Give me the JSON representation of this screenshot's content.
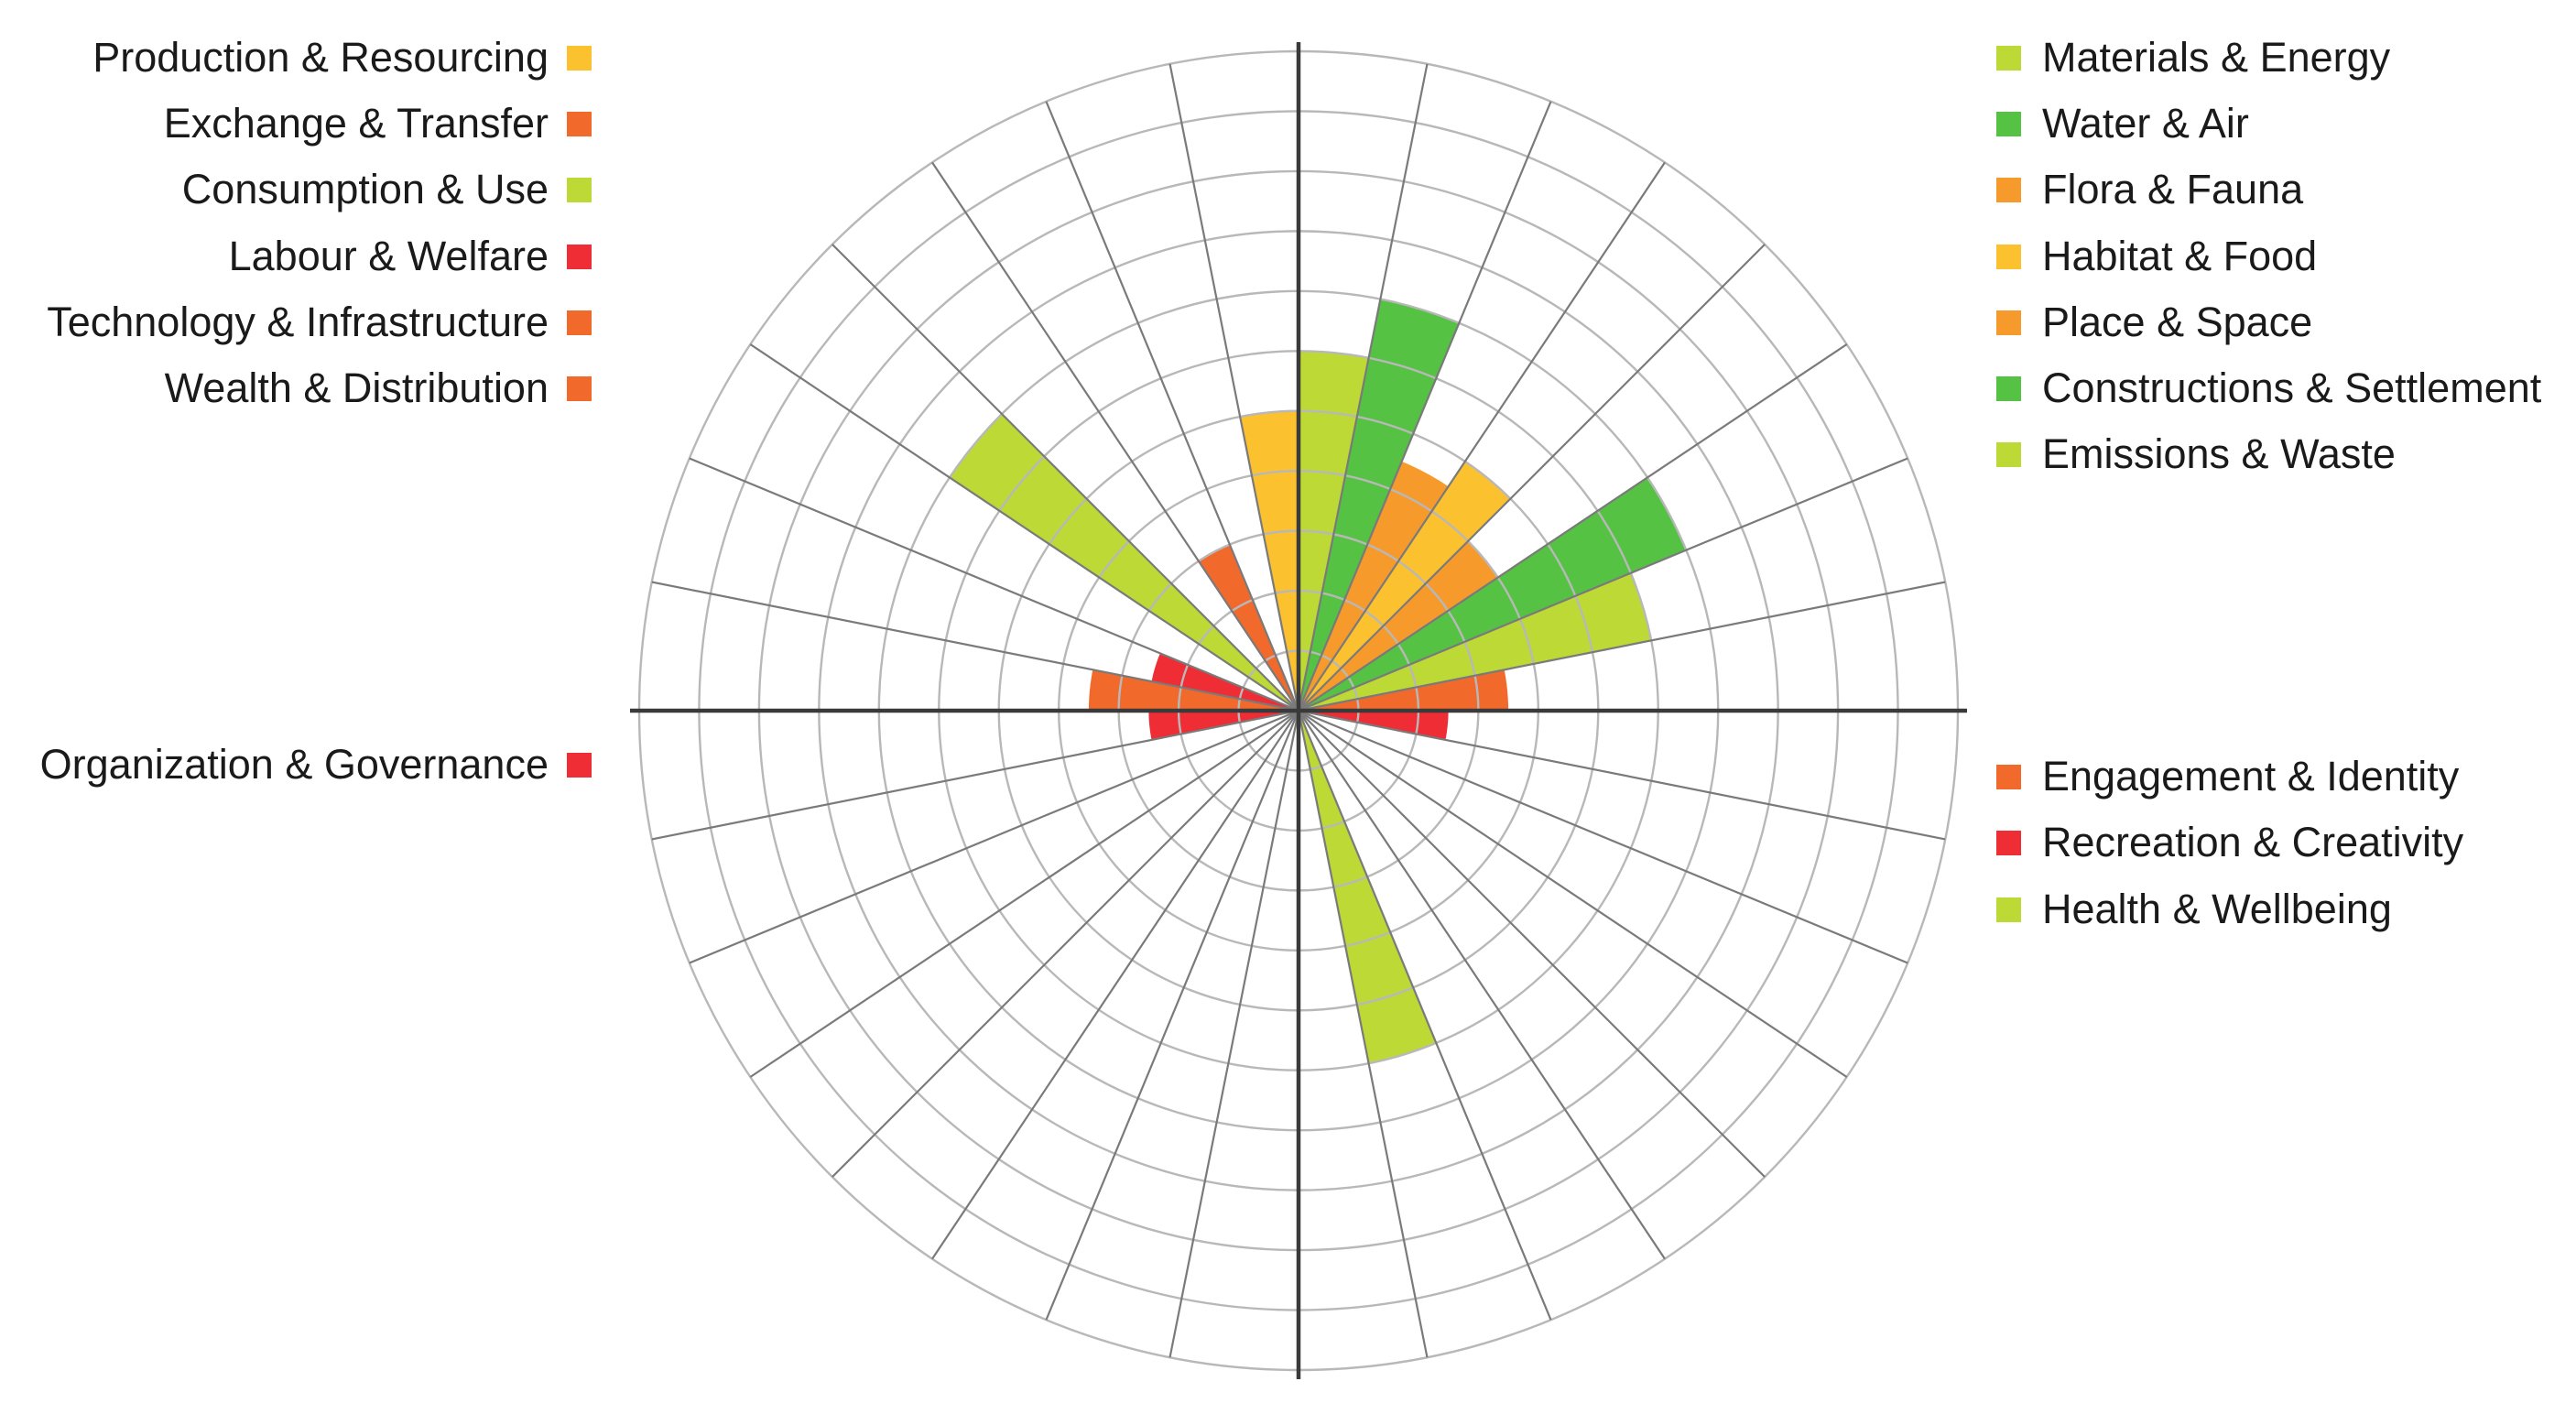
{
  "chart_data": {
    "type": "polar-bar",
    "rings": 11,
    "value_range": [
      0,
      11
    ],
    "grid": true,
    "quadrant_legend_placement": {
      "top-left": "Social",
      "top-right": "Ecological",
      "bottom-left": "Governance",
      "bottom-right": "Cultural"
    },
    "sectors": [
      {
        "label": "Materials & Energy",
        "value": 6,
        "color": "#bcd935",
        "side": "right"
      },
      {
        "label": "Water & Air",
        "value": 7,
        "color": "#55c244",
        "side": "right"
      },
      {
        "label": "Flora & Fauna",
        "value": 4.5,
        "color": "#f79a2c",
        "side": "right"
      },
      {
        "label": "Habitat & Food",
        "value": 5,
        "color": "#fbc12f",
        "side": "right"
      },
      {
        "label": "Place & Space",
        "value": 4,
        "color": "#f79a2c",
        "side": "right"
      },
      {
        "label": "Constructions & Settlement",
        "value": 7,
        "color": "#55c244",
        "side": "right"
      },
      {
        "label": "Emissions & Waste",
        "value": 6,
        "color": "#bcd935",
        "side": "right"
      },
      {
        "label": "Engagement & Identity",
        "value": 3.5,
        "color": "#f2692c",
        "side": "right"
      },
      {
        "label": "Recreation & Creativity",
        "value": 2.5,
        "color": "#ef2d35",
        "side": "right"
      },
      {
        "label": "",
        "value": 0,
        "color": "#ffffff",
        "side": "right"
      },
      {
        "label": "",
        "value": 0,
        "color": "#ffffff",
        "side": "right"
      },
      {
        "label": "",
        "value": 0,
        "color": "#ffffff",
        "side": "right"
      },
      {
        "label": "",
        "value": 0,
        "color": "#ffffff",
        "side": "right"
      },
      {
        "label": "",
        "value": 0,
        "color": "#ffffff",
        "side": "right"
      },
      {
        "label": "Health & Wellbeing",
        "value": 6,
        "color": "#bcd935",
        "side": "right"
      },
      {
        "label": "",
        "value": 0,
        "color": "#ffffff",
        "side": "left"
      },
      {
        "label": "",
        "value": 0,
        "color": "#ffffff",
        "side": "left"
      },
      {
        "label": "",
        "value": 0,
        "color": "#ffffff",
        "side": "left"
      },
      {
        "label": "",
        "value": 0,
        "color": "#ffffff",
        "side": "left"
      },
      {
        "label": "",
        "value": 0,
        "color": "#ffffff",
        "side": "left"
      },
      {
        "label": "",
        "value": 0,
        "color": "#ffffff",
        "side": "left"
      },
      {
        "label": "",
        "value": 0,
        "color": "#ffffff",
        "side": "left"
      },
      {
        "label": "",
        "value": 0,
        "color": "#ffffff",
        "side": "left"
      },
      {
        "label": "Organization & Governance",
        "value": 2.5,
        "color": "#ef2d35",
        "side": "left"
      },
      {
        "label": "Wealth & Distribution",
        "value": 3.5,
        "color": "#f2692c",
        "side": "left"
      },
      {
        "label": "Technology & Infrastructure",
        "value": 2.5,
        "color": "#ef2d35",
        "side": "left"
      },
      {
        "label": "Labour & Welfare",
        "value": 0,
        "color": "#ffffff",
        "side": "left"
      },
      {
        "label": "Consumption & Use",
        "value": 7,
        "color": "#bcd935",
        "side": "left"
      },
      {
        "label": "Exchange & Transfer",
        "value": 0,
        "color": "#ffffff",
        "side": "left"
      },
      {
        "label": "Production & Resourcing",
        "value": 3,
        "color": "#f2692c",
        "side": "left"
      },
      {
        "label": "",
        "value": 0,
        "color": "#ffffff",
        "side": "left"
      },
      {
        "label": "",
        "value": 5,
        "color": "#fbc12f",
        "side": "left"
      }
    ]
  },
  "legend": {
    "left": [
      {
        "label": "Production & Resourcing",
        "color": "#fbc12f"
      },
      {
        "label": "Exchange & Transfer",
        "color": "#f2692c"
      },
      {
        "label": "Consumption & Use",
        "color": "#bcd935"
      },
      {
        "label": "Labour & Welfare",
        "color": "#ef2d35"
      },
      {
        "label": "Technology & Infrastructure",
        "color": "#f2692c"
      },
      {
        "label": "Wealth & Distribution",
        "color": "#f2692c"
      },
      {
        "label": "Organization & Governance",
        "color": "#ef2d35"
      }
    ],
    "right": [
      {
        "label": "Materials & Energy",
        "color": "#bcd935"
      },
      {
        "label": "Water & Air",
        "color": "#55c244"
      },
      {
        "label": "Flora & Fauna",
        "color": "#f79a2c"
      },
      {
        "label": "Habitat & Food",
        "color": "#fbc12f"
      },
      {
        "label": "Place & Space",
        "color": "#f79a2c"
      },
      {
        "label": "Constructions & Settlement",
        "color": "#55c244"
      },
      {
        "label": "Emissions & Waste",
        "color": "#bcd935"
      },
      {
        "label": "Engagement & Identity",
        "color": "#f2692c"
      },
      {
        "label": "Recreation & Creativity",
        "color": "#ef2d35"
      },
      {
        "label": "Health & Wellbeing",
        "color": "#bcd935"
      }
    ]
  }
}
